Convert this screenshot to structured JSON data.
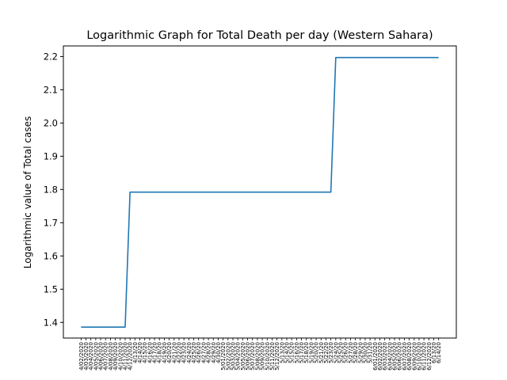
{
  "chart_data": {
    "type": "line",
    "title": "Logarithmic Graph for Total Death per day (Western Sahara)",
    "xlabel": "",
    "ylabel": "Logarithmic value of Total cases",
    "ylim": [
      1.353,
      2.232
    ],
    "yticks": [
      1.4,
      1.5,
      1.6,
      1.7,
      1.8,
      1.9,
      2.0,
      2.1,
      2.2
    ],
    "grid": false,
    "line_color": "#1f77b4",
    "x": [
      "4/02/2020",
      "4/03/2020",
      "4/04/2020",
      "4/05/2020",
      "4/06/2020",
      "4/07/2020",
      "4/08/2020",
      "4/09/2020",
      "4/10/2020",
      "4/11/2020",
      "4/12/2020",
      "4/13/20",
      "4/14/20",
      "4/15/20",
      "4/16/20",
      "4/17/20",
      "4/18/20",
      "4/19/20",
      "4/20/20",
      "4/21/20",
      "4/22/20",
      "4/23/20",
      "4/24/20",
      "4/25/20",
      "4/26/20",
      "4/27/20",
      "4/28/20",
      "4/29/20",
      "4/30/20",
      "5/01/2020",
      "5/02/2020",
      "5/03/2020",
      "5/04/2020",
      "5/05/2020",
      "5/06/2020",
      "5/07/2020",
      "5/08/2020",
      "5/09/2020",
      "5/10/2020",
      "5/11/2020",
      "5/12/2020",
      "5/13/20",
      "5/14/20",
      "5/15/20",
      "5/16/20",
      "5/17/20",
      "5/18/20",
      "5/19/20",
      "5/20/20",
      "5/21/20",
      "5/22/20",
      "5/23/20",
      "5/24/20",
      "5/25/20",
      "5/26/20",
      "5/27/20",
      "5/28/20",
      "5/29/20",
      "5/30/20",
      "5/31/20",
      "6/01/2020",
      "6/02/2020",
      "6/03/2020",
      "6/04/2020",
      "6/05/2020",
      "6/06/2020",
      "6/07/2020",
      "6/08/2020",
      "6/09/2020",
      "6/10/2020",
      "6/11/2020",
      "6/12/2020",
      "6/13/20",
      "6/14/20"
    ],
    "values": [
      1.386,
      1.386,
      1.386,
      1.386,
      1.386,
      1.386,
      1.386,
      1.386,
      1.386,
      1.386,
      1.792,
      1.792,
      1.792,
      1.792,
      1.792,
      1.792,
      1.792,
      1.792,
      1.792,
      1.792,
      1.792,
      1.792,
      1.792,
      1.792,
      1.792,
      1.792,
      1.792,
      1.792,
      1.792,
      1.792,
      1.792,
      1.792,
      1.792,
      1.792,
      1.792,
      1.792,
      1.792,
      1.792,
      1.792,
      1.792,
      1.792,
      1.792,
      1.792,
      1.792,
      1.792,
      1.792,
      1.792,
      1.792,
      1.792,
      1.792,
      1.792,
      1.792,
      2.197,
      2.197,
      2.197,
      2.197,
      2.197,
      2.197,
      2.197,
      2.197,
      2.197,
      2.197,
      2.197,
      2.197,
      2.197,
      2.197,
      2.197,
      2.197,
      2.197,
      2.197,
      2.197,
      2.197,
      2.197,
      2.197
    ]
  }
}
